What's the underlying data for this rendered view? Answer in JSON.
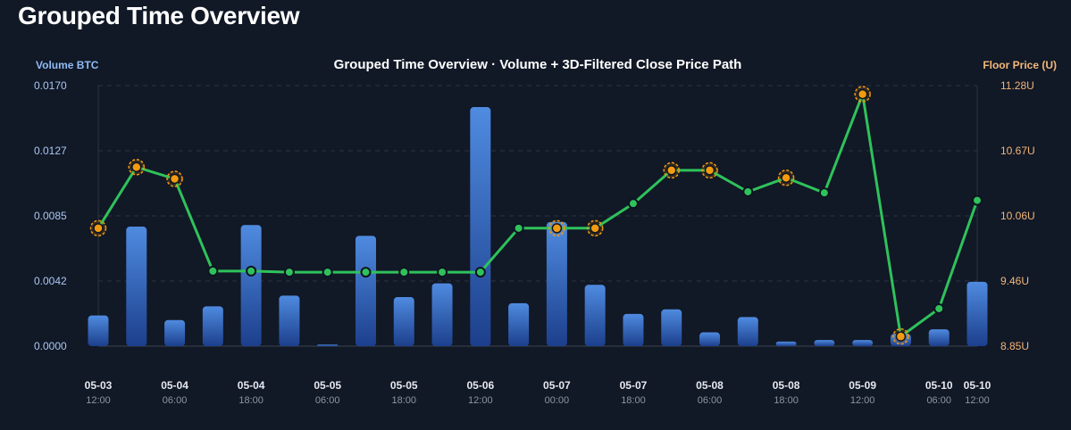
{
  "page": {
    "title": "Grouped Time Overview"
  },
  "chart_data": {
    "type": "bar",
    "title": "Grouped Time Overview · Volume + 3D-Filtered Close Price Path",
    "y_left_label": "Volume BTC",
    "y_right_label": "Floor Price (U)",
    "y_left_ticks": [
      "0.0000",
      "0.0042",
      "0.0085",
      "0.0127",
      "0.0170"
    ],
    "y_right_ticks": [
      "8.85U",
      "9.46U",
      "10.06U",
      "10.67U",
      "11.28U"
    ],
    "ylim_left": [
      0,
      0.017
    ],
    "ylim_right": [
      8.85,
      11.28
    ],
    "grid": true,
    "colors": {
      "bar_top": "#4f8be0",
      "bar_bottom": "#1c3f8c",
      "line": "#2fc25b",
      "marker": "#2fc25b",
      "highlight": "#f29a10",
      "left_axis": "#a9c8f2",
      "right_axis": "#f3b57a"
    },
    "x_ticks": [
      {
        "date": "05-03",
        "time": "12:00",
        "index": 0
      },
      {
        "date": "05-04",
        "time": "06:00",
        "index": 2
      },
      {
        "date": "05-04",
        "time": "18:00",
        "index": 4
      },
      {
        "date": "05-05",
        "time": "06:00",
        "index": 6
      },
      {
        "date": "05-05",
        "time": "18:00",
        "index": 8
      },
      {
        "date": "05-06",
        "time": "12:00",
        "index": 10
      },
      {
        "date": "05-07",
        "time": "00:00",
        "index": 12
      },
      {
        "date": "05-07",
        "time": "18:00",
        "index": 14
      },
      {
        "date": "05-08",
        "time": "06:00",
        "index": 16
      },
      {
        "date": "05-08",
        "time": "18:00",
        "index": 18
      },
      {
        "date": "05-09",
        "time": "12:00",
        "index": 20
      },
      {
        "date": "05-10",
        "time": "06:00",
        "index": 22
      },
      {
        "date": "05-10",
        "time": "12:00",
        "index": 23
      }
    ],
    "series": [
      {
        "name": "Volume BTC",
        "type": "bar",
        "axis": "left",
        "values": [
          0.002,
          0.0078,
          0.0017,
          0.0026,
          0.0079,
          0.0033,
          0.0001,
          0.0072,
          0.0032,
          0.0041,
          0.0156,
          0.0028,
          0.0081,
          0.004,
          0.0021,
          0.0024,
          0.0009,
          0.0019,
          0.0003,
          0.0004,
          0.0004,
          0.0008,
          0.0011,
          0.0042
        ]
      },
      {
        "name": "Floor Price (U)",
        "type": "line",
        "axis": "right",
        "values": [
          9.95,
          10.52,
          10.41,
          9.55,
          9.55,
          9.54,
          9.54,
          9.54,
          9.54,
          9.54,
          9.54,
          9.95,
          9.95,
          9.95,
          10.18,
          10.49,
          10.49,
          10.29,
          10.42,
          10.28,
          11.2,
          8.94,
          9.2,
          10.21
        ],
        "highlighted": [
          0,
          1,
          2,
          12,
          13,
          15,
          16,
          18,
          20,
          21
        ]
      }
    ]
  }
}
